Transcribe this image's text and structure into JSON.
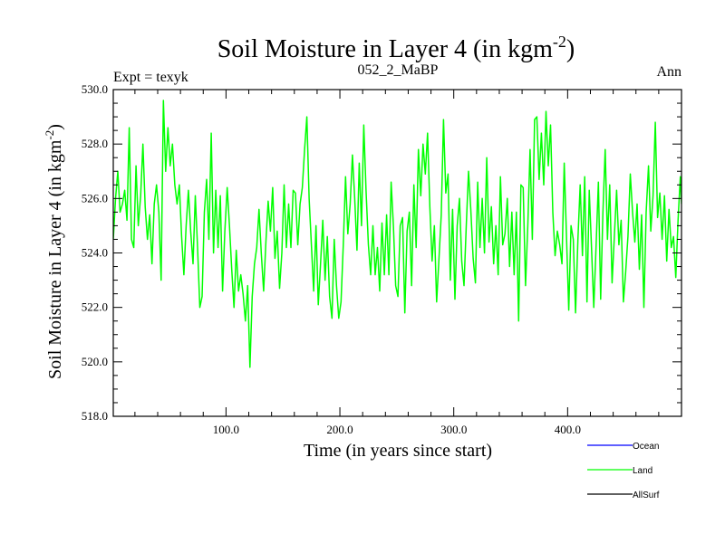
{
  "chart_data": {
    "type": "line",
    "title": "Soil Moisture in Layer 4 (in kgm",
    "title_sup": "-2",
    "title_close": ")",
    "subtitle_left": "Expt = texyk",
    "subtitle_center": "052_2_MaBP",
    "subtitle_right": "Ann",
    "xlabel": "Time (in years since start)",
    "ylabel": "Soil Moisture in Layer 4 (in kgm",
    "ylabel_sup": "-2",
    "ylabel_close": ")",
    "xlim": [
      1,
      500
    ],
    "ylim": [
      518.0,
      530.0
    ],
    "xticks": [
      100,
      200,
      300,
      400
    ],
    "xtick_labels": [
      "100.0",
      "200.0",
      "300.0",
      "400.0"
    ],
    "yticks": [
      518,
      520,
      522,
      524,
      526,
      528,
      530
    ],
    "ytick_labels": [
      "518.0",
      "520.0",
      "522.0",
      "524.0",
      "526.0",
      "528.0",
      "530.0"
    ],
    "legend_position": "bottom-right",
    "legend": [
      {
        "name": "Ocean",
        "color": "#0000ff"
      },
      {
        "name": "Land",
        "color": "#00ff00"
      },
      {
        "name": "AllSurf",
        "color": "#000000"
      }
    ],
    "series": [
      {
        "name": "Land",
        "color": "#00ff00",
        "x_start": 1,
        "x_step": 1,
        "keypoints": [
          [
            1,
            524.5
          ],
          [
            3,
            526.0
          ],
          [
            5,
            527.0
          ],
          [
            7,
            525.5
          ],
          [
            9,
            525.8
          ],
          [
            11,
            526.3
          ],
          [
            13,
            525.2
          ],
          [
            15,
            528.6
          ],
          [
            17,
            524.5
          ],
          [
            19,
            524.2
          ],
          [
            21,
            527.2
          ],
          [
            23,
            525.0
          ],
          [
            25,
            526.1
          ],
          [
            27,
            528.0
          ],
          [
            29,
            525.7
          ],
          [
            31,
            524.5
          ],
          [
            33,
            525.4
          ],
          [
            35,
            523.6
          ],
          [
            37,
            525.8
          ],
          [
            39,
            526.5
          ],
          [
            41,
            525.5
          ],
          [
            43,
            523.0
          ],
          [
            45,
            529.6
          ],
          [
            47,
            527.0
          ],
          [
            49,
            528.6
          ],
          [
            51,
            527.2
          ],
          [
            53,
            528.0
          ],
          [
            55,
            526.5
          ],
          [
            57,
            525.8
          ],
          [
            59,
            526.5
          ],
          [
            61,
            524.6
          ],
          [
            63,
            523.2
          ],
          [
            65,
            525.0
          ],
          [
            67,
            526.3
          ],
          [
            69,
            524.8
          ],
          [
            71,
            523.6
          ],
          [
            73,
            526.1
          ],
          [
            75,
            524.2
          ],
          [
            77,
            522.0
          ],
          [
            79,
            522.4
          ],
          [
            81,
            525.5
          ],
          [
            83,
            526.7
          ],
          [
            85,
            524.5
          ],
          [
            87,
            528.4
          ],
          [
            89,
            524.0
          ],
          [
            91,
            526.3
          ],
          [
            93,
            524.2
          ],
          [
            95,
            526.1
          ],
          [
            97,
            522.6
          ],
          [
            99,
            524.8
          ],
          [
            101,
            526.4
          ],
          [
            103,
            525.0
          ],
          [
            105,
            523.4
          ],
          [
            107,
            522.0
          ],
          [
            109,
            524.1
          ],
          [
            111,
            522.6
          ],
          [
            113,
            523.2
          ],
          [
            115,
            522.5
          ],
          [
            117,
            521.5
          ],
          [
            119,
            522.8
          ],
          [
            121,
            519.8
          ],
          [
            123,
            522.4
          ],
          [
            125,
            523.6
          ],
          [
            127,
            524.2
          ],
          [
            129,
            525.6
          ],
          [
            131,
            524.0
          ],
          [
            133,
            522.6
          ],
          [
            135,
            524.4
          ],
          [
            137,
            525.9
          ],
          [
            139,
            524.8
          ],
          [
            141,
            526.4
          ],
          [
            143,
            523.8
          ],
          [
            145,
            524.8
          ],
          [
            147,
            522.7
          ],
          [
            149,
            524.0
          ],
          [
            151,
            526.5
          ],
          [
            153,
            524.2
          ],
          [
            155,
            525.8
          ],
          [
            157,
            524.2
          ],
          [
            159,
            526.3
          ],
          [
            161,
            526.2
          ],
          [
            163,
            524.3
          ],
          [
            165,
            525.8
          ],
          [
            167,
            526.4
          ],
          [
            169,
            527.8
          ],
          [
            171,
            529.0
          ],
          [
            173,
            526.0
          ],
          [
            175,
            524.3
          ],
          [
            177,
            522.6
          ],
          [
            179,
            525.0
          ],
          [
            181,
            522.1
          ],
          [
            183,
            523.6
          ],
          [
            185,
            525.2
          ],
          [
            187,
            523.0
          ],
          [
            189,
            524.6
          ],
          [
            191,
            522.4
          ],
          [
            193,
            521.6
          ],
          [
            195,
            524.5
          ],
          [
            197,
            522.8
          ],
          [
            199,
            521.6
          ],
          [
            201,
            522.2
          ],
          [
            203,
            524.3
          ],
          [
            205,
            526.8
          ],
          [
            207,
            524.7
          ],
          [
            209,
            525.8
          ],
          [
            211,
            527.6
          ],
          [
            213,
            526.0
          ],
          [
            215,
            524.1
          ],
          [
            217,
            527.3
          ],
          [
            219,
            525.0
          ],
          [
            221,
            528.7
          ],
          [
            223,
            526.3
          ],
          [
            225,
            524.3
          ],
          [
            227,
            523.2
          ],
          [
            229,
            525.0
          ],
          [
            231,
            523.2
          ],
          [
            233,
            524.2
          ],
          [
            235,
            522.6
          ],
          [
            237,
            525.1
          ],
          [
            239,
            523.2
          ],
          [
            241,
            525.4
          ],
          [
            243,
            523.2
          ],
          [
            245,
            526.6
          ],
          [
            247,
            525.0
          ],
          [
            249,
            522.8
          ],
          [
            251,
            522.4
          ],
          [
            253,
            525.0
          ],
          [
            255,
            525.3
          ],
          [
            257,
            521.8
          ],
          [
            259,
            524.8
          ],
          [
            261,
            525.5
          ],
          [
            263,
            522.8
          ],
          [
            265,
            526.5
          ],
          [
            267,
            524.2
          ],
          [
            269,
            527.8
          ],
          [
            271,
            526.1
          ],
          [
            273,
            528.0
          ],
          [
            275,
            526.9
          ],
          [
            277,
            528.4
          ],
          [
            279,
            525.7
          ],
          [
            281,
            523.7
          ],
          [
            283,
            525.0
          ],
          [
            285,
            522.2
          ],
          [
            287,
            523.8
          ],
          [
            289,
            525.4
          ],
          [
            291,
            528.9
          ],
          [
            293,
            526.2
          ],
          [
            295,
            526.9
          ],
          [
            297,
            523.0
          ],
          [
            299,
            525.6
          ],
          [
            301,
            522.3
          ],
          [
            303,
            525.0
          ],
          [
            305,
            526.0
          ],
          [
            307,
            523.7
          ],
          [
            309,
            522.8
          ],
          [
            311,
            525.0
          ],
          [
            313,
            527.0
          ],
          [
            315,
            525.6
          ],
          [
            317,
            523.8
          ],
          [
            319,
            522.9
          ],
          [
            321,
            526.6
          ],
          [
            323,
            524.2
          ],
          [
            325,
            526.0
          ],
          [
            327,
            524.0
          ],
          [
            329,
            527.5
          ],
          [
            331,
            524.4
          ],
          [
            333,
            525.7
          ],
          [
            335,
            523.6
          ],
          [
            337,
            525.0
          ],
          [
            339,
            523.2
          ],
          [
            341,
            526.8
          ],
          [
            343,
            524.3
          ],
          [
            345,
            524.7
          ],
          [
            347,
            526.0
          ],
          [
            349,
            523.5
          ],
          [
            351,
            525.5
          ],
          [
            353,
            523.2
          ],
          [
            355,
            525.5
          ],
          [
            357,
            521.5
          ],
          [
            359,
            526.5
          ],
          [
            361,
            526.4
          ],
          [
            363,
            522.8
          ],
          [
            365,
            525.0
          ],
          [
            367,
            527.8
          ],
          [
            369,
            524.5
          ],
          [
            371,
            528.9
          ],
          [
            373,
            529.0
          ],
          [
            375,
            526.7
          ],
          [
            377,
            528.4
          ],
          [
            379,
            526.5
          ],
          [
            381,
            529.2
          ],
          [
            383,
            527.2
          ],
          [
            385,
            528.7
          ],
          [
            387,
            525.5
          ],
          [
            389,
            523.9
          ],
          [
            391,
            524.8
          ],
          [
            393,
            524.3
          ],
          [
            395,
            523.6
          ],
          [
            397,
            527.3
          ],
          [
            399,
            524.6
          ],
          [
            401,
            521.9
          ],
          [
            403,
            525.0
          ],
          [
            405,
            524.5
          ],
          [
            407,
            521.8
          ],
          [
            409,
            524.5
          ],
          [
            411,
            526.5
          ],
          [
            413,
            523.9
          ],
          [
            415,
            526.8
          ],
          [
            417,
            522.2
          ],
          [
            419,
            526.3
          ],
          [
            421,
            524.2
          ],
          [
            423,
            522.0
          ],
          [
            425,
            524.3
          ],
          [
            427,
            526.6
          ],
          [
            429,
            522.3
          ],
          [
            431,
            525.5
          ],
          [
            433,
            527.8
          ],
          [
            435,
            524.5
          ],
          [
            437,
            526.5
          ],
          [
            439,
            522.9
          ],
          [
            441,
            524.6
          ],
          [
            443,
            526.3
          ],
          [
            445,
            524.3
          ],
          [
            447,
            525.2
          ],
          [
            449,
            522.2
          ],
          [
            451,
            523.3
          ],
          [
            453,
            524.6
          ],
          [
            455,
            526.9
          ],
          [
            457,
            525.5
          ],
          [
            459,
            524.4
          ],
          [
            461,
            525.8
          ],
          [
            463,
            523.4
          ],
          [
            465,
            525.4
          ],
          [
            467,
            522.0
          ],
          [
            469,
            525.5
          ],
          [
            471,
            527.2
          ],
          [
            473,
            524.8
          ],
          [
            475,
            526.1
          ],
          [
            477,
            528.8
          ],
          [
            479,
            525.3
          ],
          [
            481,
            526.2
          ],
          [
            483,
            524.5
          ],
          [
            485,
            526.1
          ],
          [
            487,
            523.7
          ],
          [
            489,
            525.6
          ],
          [
            491,
            524.2
          ],
          [
            493,
            524.6
          ],
          [
            495,
            523.1
          ],
          [
            497,
            525.2
          ],
          [
            499,
            526.8
          ],
          [
            500,
            525.8
          ]
        ]
      }
    ]
  }
}
